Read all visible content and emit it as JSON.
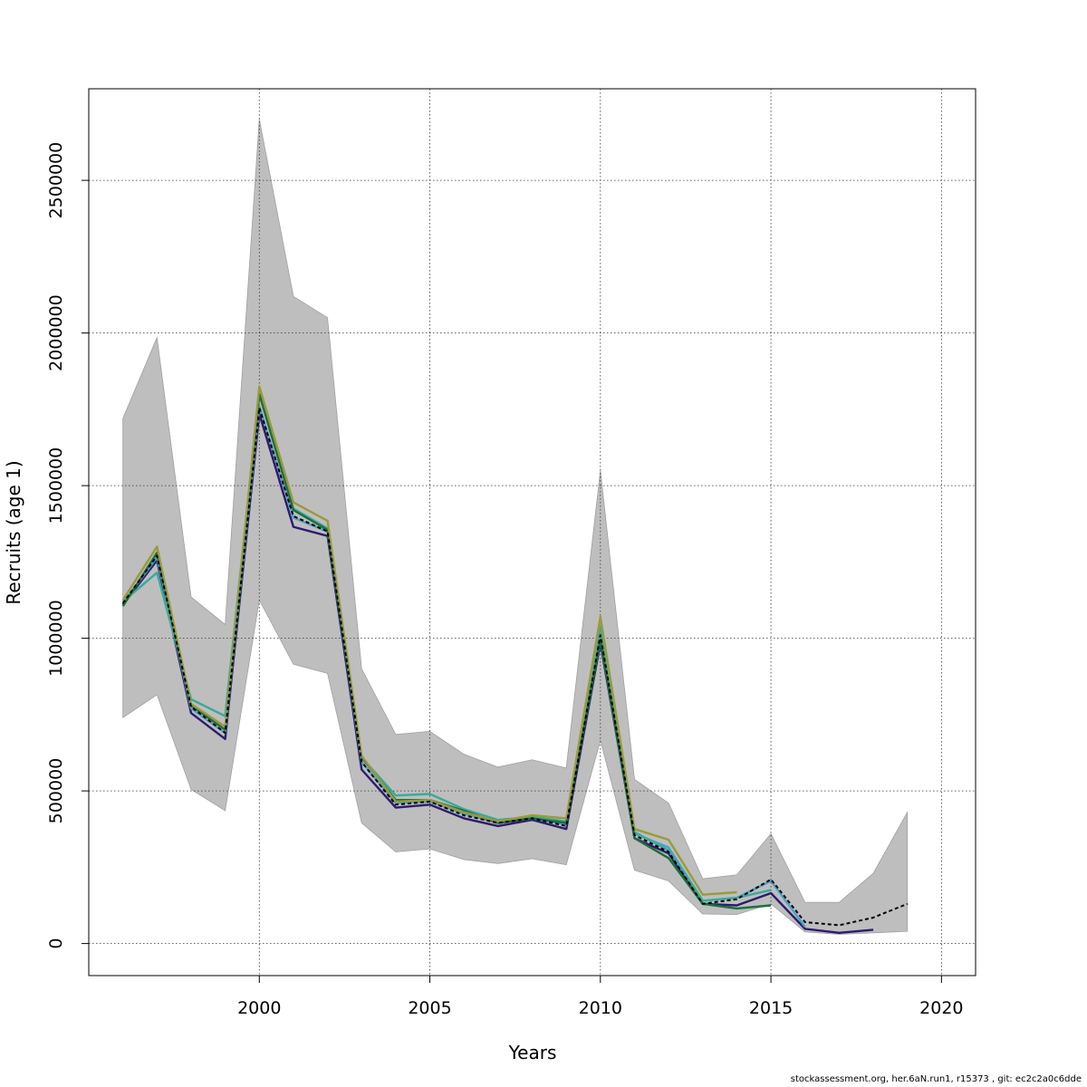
{
  "footer": "stockassessment.org, her.6aN.run1, r15373 , git: ec2c2a0c6dde",
  "chart_data": {
    "type": "line",
    "title": "",
    "xlabel": "Years",
    "ylabel": "Recruits (age 1)",
    "xlim": [
      1995,
      2021
    ],
    "ylim": [
      -105000,
      2800000
    ],
    "x_ticks": [
      2000,
      2005,
      2010,
      2015,
      2020
    ],
    "y_ticks": [
      0,
      500000,
      1000000,
      1500000,
      2000000,
      2500000
    ],
    "grid": true,
    "band": {
      "years": [
        1996,
        1997,
        1998,
        1999,
        2000,
        2001,
        2002,
        2003,
        2004,
        2005,
        2006,
        2007,
        2008,
        2009,
        2010,
        2011,
        2012,
        2013,
        2014,
        2015,
        2016,
        2017,
        2018,
        2019
      ],
      "lower": [
        740000,
        815000,
        505000,
        435000,
        1125000,
        915000,
        885000,
        395000,
        300000,
        310000,
        275000,
        262000,
        278000,
        258000,
        665000,
        240000,
        205000,
        97000,
        95000,
        130000,
        38000,
        30000,
        35000,
        40000
      ],
      "upper": [
        1720000,
        1985000,
        1135000,
        1045000,
        2700000,
        2120000,
        2050000,
        900000,
        685000,
        695000,
        620000,
        578000,
        602000,
        575000,
        1550000,
        538000,
        460000,
        212000,
        225000,
        360000,
        135000,
        135000,
        230000,
        430000
      ],
      "color": "#bebebe"
    },
    "series": [
      {
        "color": "#000000",
        "dashed": true,
        "years": [
          1996,
          1997,
          1998,
          1999,
          2000,
          2001,
          2002,
          2003,
          2004,
          2005,
          2006,
          2007,
          2008,
          2009,
          2010,
          2011,
          2012,
          2013,
          2014,
          2015,
          2016,
          2017,
          2018,
          2019
        ],
        "values": [
          1115000,
          1270000,
          775000,
          690000,
          1755000,
          1400000,
          1350000,
          595000,
          455000,
          465000,
          420000,
          395000,
          410000,
          385000,
          1010000,
          355000,
          300000,
          130000,
          145000,
          210000,
          70000,
          60000,
          85000,
          130000
        ]
      },
      {
        "color": "#2e1a6e",
        "years": [
          1996,
          1997,
          1998,
          1999,
          2000,
          2001,
          2002,
          2003,
          2004,
          2005,
          2006,
          2007,
          2008,
          2009,
          2010,
          2011,
          2012,
          2013,
          2014,
          2015,
          2016,
          2017,
          2018
        ],
        "values": [
          1110000,
          1255000,
          755000,
          670000,
          1735000,
          1365000,
          1335000,
          570000,
          445000,
          455000,
          410000,
          385000,
          405000,
          375000,
          985000,
          345000,
          295000,
          130000,
          125000,
          165000,
          48000,
          35000,
          45000
        ]
      },
      {
        "color": "#4aa3c7",
        "years": [
          1996,
          1997,
          1998,
          1999,
          2000,
          2001,
          2002,
          2003,
          2004,
          2005,
          2006,
          2007,
          2008,
          2009,
          2010,
          2011,
          2012,
          2013,
          2014,
          2015,
          2016
        ],
        "values": [
          1115000,
          1265000,
          770000,
          690000,
          1760000,
          1395000,
          1350000,
          595000,
          460000,
          465000,
          425000,
          395000,
          410000,
          390000,
          1020000,
          360000,
          315000,
          140000,
          150000,
          205000,
          55000
        ]
      },
      {
        "color": "#3aaa9a",
        "years": [
          1996,
          1997,
          1998,
          1999,
          2000,
          2001,
          2002,
          2003,
          2004,
          2005,
          2006,
          2007,
          2008,
          2009,
          2010,
          2011,
          2012,
          2013,
          2014,
          2015
        ],
        "values": [
          1120000,
          1215000,
          800000,
          745000,
          1800000,
          1425000,
          1360000,
          610000,
          485000,
          490000,
          440000,
          405000,
          415000,
          400000,
          1040000,
          365000,
          305000,
          140000,
          150000,
          175000
        ]
      },
      {
        "color": "#1d6e3a",
        "years": [
          1996,
          1997,
          1998,
          1999,
          2000,
          2001,
          2002,
          2003,
          2004,
          2005,
          2006,
          2007,
          2008,
          2009,
          2010,
          2011,
          2012,
          2013,
          2014,
          2015
        ],
        "values": [
          1105000,
          1280000,
          780000,
          700000,
          1800000,
          1420000,
          1355000,
          610000,
          470000,
          470000,
          435000,
          395000,
          410000,
          395000,
          995000,
          345000,
          280000,
          130000,
          115000,
          125000
        ]
      },
      {
        "color": "#9a9a3a",
        "years": [
          1996,
          1997,
          1998,
          1999,
          2000,
          2001,
          2002,
          2003,
          2004,
          2005,
          2006,
          2007,
          2008,
          2009,
          2010,
          2011,
          2012,
          2013,
          2014
        ],
        "values": [
          1125000,
          1300000,
          785000,
          710000,
          1825000,
          1445000,
          1385000,
          615000,
          465000,
          470000,
          430000,
          400000,
          420000,
          410000,
          1070000,
          375000,
          340000,
          160000,
          168000
        ]
      }
    ]
  }
}
